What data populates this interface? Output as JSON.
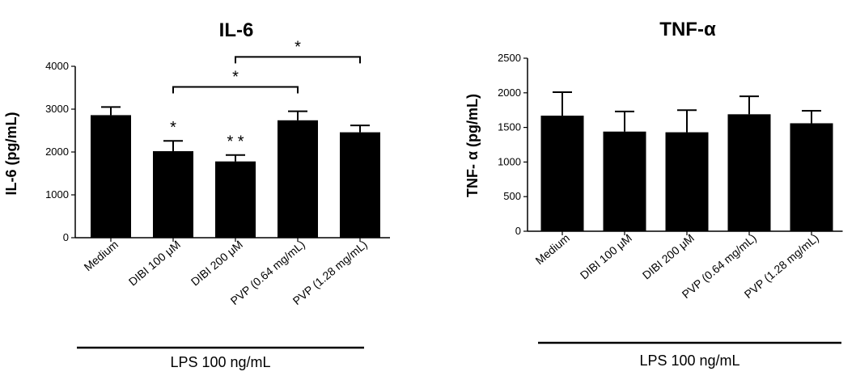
{
  "chart_data": [
    {
      "type": "bar",
      "title": "IL-6",
      "ylabel": "IL-6 (pg/mL)",
      "xlabel": "LPS 100 ng/mL",
      "categories": [
        "Medium",
        "DIBI 100 μM",
        "DIBI 200 μM",
        "PVP (0.64 mg/mL)",
        "PVP (1.28 mg/mL)"
      ],
      "values": [
        2860,
        2020,
        1780,
        2740,
        2460
      ],
      "errors": [
        190,
        240,
        150,
        210,
        160
      ],
      "ylim": [
        0,
        4000
      ],
      "yticks": [
        "0",
        "1000",
        "2000",
        "3000",
        "4000"
      ],
      "bar_annotations": [
        "",
        "*",
        "**",
        "",
        ""
      ],
      "brackets": [
        {
          "from": 1,
          "to": 3,
          "label": "*",
          "y": 3520
        },
        {
          "from": 2,
          "to": 4,
          "label": "*",
          "y": 4220
        }
      ]
    },
    {
      "type": "bar",
      "title": "TNF-α",
      "ylabel": "TNF- α (pg/mL)",
      "xlabel": "LPS 100 ng/mL",
      "categories": [
        "Medium",
        "DIBI 100 μM",
        "DIBI 200 μM",
        "PVP (0.64 mg/mL)",
        "PVP (1.28 mg/mL)"
      ],
      "values": [
        1670,
        1440,
        1430,
        1690,
        1560
      ],
      "errors": [
        340,
        290,
        320,
        260,
        180
      ],
      "ylim": [
        0,
        2500
      ],
      "yticks": [
        "0",
        "500",
        "1000",
        "1500",
        "2000",
        "2500"
      ],
      "bar_annotations": [
        "",
        "",
        "",
        "",
        ""
      ],
      "brackets": []
    }
  ]
}
